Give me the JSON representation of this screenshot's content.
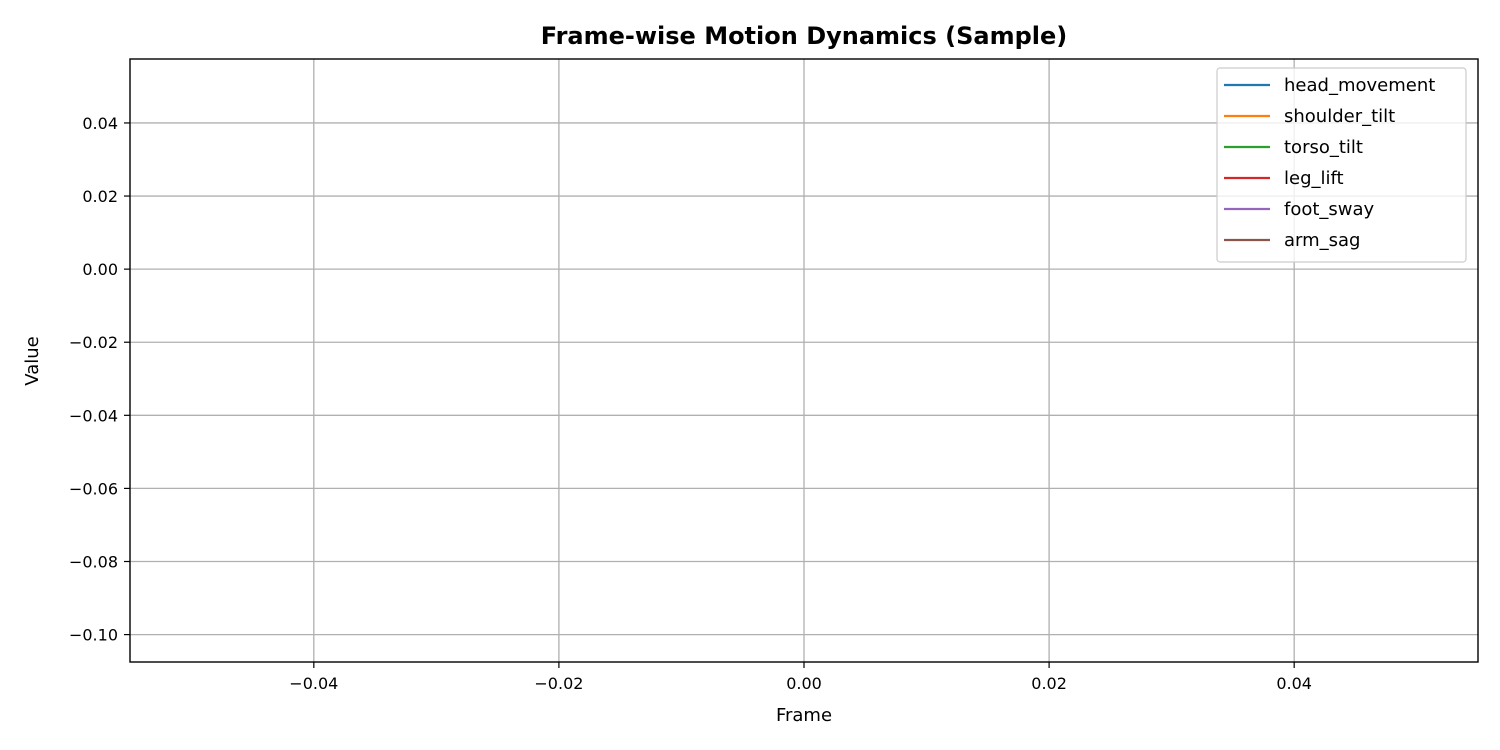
{
  "chart_data": {
    "type": "line",
    "title": "Frame-wise Motion Dynamics (Sample)",
    "xlabel": "Frame",
    "ylabel": "Value",
    "xlim": [
      -0.055,
      0.055
    ],
    "ylim": [
      -0.1075,
      0.0575
    ],
    "x_ticks": [
      -0.04,
      -0.02,
      0.0,
      0.02,
      0.04
    ],
    "x_tick_labels": [
      "−0.04",
      "−0.02",
      "0.00",
      "0.02",
      "0.04"
    ],
    "y_ticks": [
      0.04,
      0.02,
      0.0,
      -0.02,
      -0.04,
      -0.06,
      -0.08,
      -0.1
    ],
    "y_tick_labels": [
      "0.04",
      "0.02",
      "0.00",
      "−0.02",
      "−0.04",
      "−0.06",
      "−0.08",
      "−0.10"
    ],
    "grid": true,
    "legend_position": "top-right",
    "series": [
      {
        "name": "head_movement",
        "color": "#1f77b4",
        "x": [],
        "y": []
      },
      {
        "name": "shoulder_tilt",
        "color": "#ff7f0e",
        "x": [],
        "y": []
      },
      {
        "name": "torso_tilt",
        "color": "#2ca02c",
        "x": [],
        "y": []
      },
      {
        "name": "leg_lift",
        "color": "#d62728",
        "x": [],
        "y": []
      },
      {
        "name": "foot_sway",
        "color": "#9467bd",
        "x": [],
        "y": []
      },
      {
        "name": "arm_sag",
        "color": "#8c564b",
        "x": [],
        "y": []
      }
    ]
  }
}
